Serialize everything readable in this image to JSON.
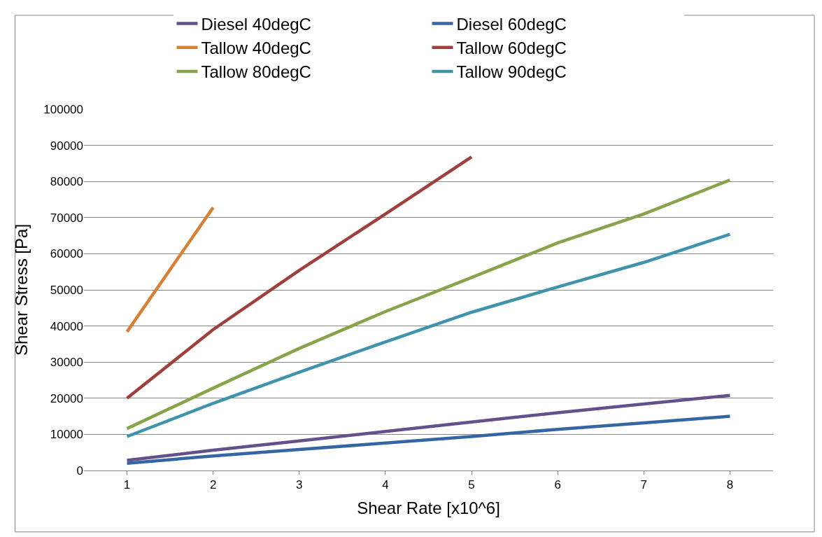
{
  "chart_data": {
    "type": "line",
    "xlabel": "Shear Rate [x10^6]",
    "ylabel": "Shear Stress [Pa]",
    "categories": [
      "1",
      "2",
      "3",
      "4",
      "5",
      "6",
      "7",
      "8"
    ],
    "series": [
      {
        "name": "Diesel 40degC",
        "color": "#64508a",
        "values": [
          2800,
          5600,
          8200,
          10800,
          13400,
          16000,
          18400,
          20800
        ]
      },
      {
        "name": "Diesel 60degC",
        "color": "#3466a4",
        "values": [
          2000,
          4000,
          5800,
          7600,
          9400,
          11400,
          13200,
          15000
        ]
      },
      {
        "name": "Tallow 40degC",
        "color": "#d78137",
        "values": [
          38400,
          72800,
          null,
          null,
          null,
          null,
          null,
          null
        ]
      },
      {
        "name": "Tallow 60degC",
        "color": "#a0403c",
        "values": [
          20000,
          39000,
          55400,
          71000,
          86800,
          null,
          null,
          null
        ]
      },
      {
        "name": "Tallow 80degC",
        "color": "#87a44a",
        "values": [
          11600,
          22800,
          33800,
          44000,
          53400,
          63000,
          71000,
          80400
        ]
      },
      {
        "name": "Tallow 90degC",
        "color": "#3f94ab",
        "values": [
          9400,
          18600,
          27200,
          35600,
          43800,
          50800,
          57600,
          65400
        ]
      }
    ],
    "ylim": [
      0,
      100000
    ],
    "yticks": [
      0,
      10000,
      20000,
      30000,
      40000,
      50000,
      60000,
      70000,
      80000,
      90000,
      100000
    ],
    "grid": "y",
    "legend": "top",
    "marker": "none",
    "line_style": "solid"
  }
}
